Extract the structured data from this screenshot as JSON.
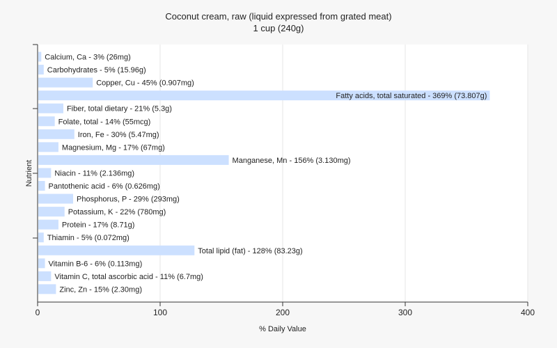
{
  "chart_data": {
    "type": "bar",
    "orientation": "horizontal",
    "title": "Coconut cream, raw (liquid expressed from grated meat)",
    "subtitle": "1 cup (240g)",
    "xlabel": "% Daily Value",
    "ylabel": "Nutrient",
    "xlim": [
      0,
      400
    ],
    "xticks": [
      0,
      100,
      200,
      300,
      400
    ],
    "grid": true,
    "bar_color": "#cce0ff",
    "categories": [
      "Calcium, Ca",
      "Carbohydrates",
      "Copper, Cu",
      "Fatty acids, total saturated",
      "Fiber, total dietary",
      "Folate, total",
      "Iron, Fe",
      "Magnesium, Mg",
      "Manganese, Mn",
      "Niacin",
      "Pantothenic acid",
      "Phosphorus, P",
      "Potassium, K",
      "Protein",
      "Thiamin",
      "Total lipid (fat)",
      "Vitamin B-6",
      "Vitamin C, total ascorbic acid",
      "Zinc, Zn"
    ],
    "values": [
      3,
      5,
      45,
      369,
      21,
      14,
      30,
      17,
      156,
      11,
      6,
      29,
      22,
      17,
      5,
      128,
      6,
      11,
      15
    ],
    "labels": [
      "Calcium, Ca - 3% (26mg)",
      "Carbohydrates - 5% (15.96g)",
      "Copper, Cu - 45% (0.907mg)",
      "Fatty acids, total saturated - 369% (73.807g)",
      "Fiber, total dietary - 21% (5.3g)",
      "Folate, total - 14% (55mcg)",
      "Iron, Fe - 30% (5.47mg)",
      "Magnesium, Mg - 17% (67mg)",
      "Manganese, Mn - 156% (3.130mg)",
      "Niacin - 11% (2.136mg)",
      "Pantothenic acid - 6% (0.626mg)",
      "Phosphorus, P - 29% (293mg)",
      "Potassium, K - 22% (780mg)",
      "Protein - 17% (8.71g)",
      "Thiamin - 5% (0.072mg)",
      "Total lipid (fat) - 128% (83.23g)",
      "Vitamin B-6 - 6% (0.113mg)",
      "Vitamin C, total ascorbic acid - 11% (6.7mg)",
      "Zinc, Zn - 15% (2.30mg)"
    ]
  }
}
